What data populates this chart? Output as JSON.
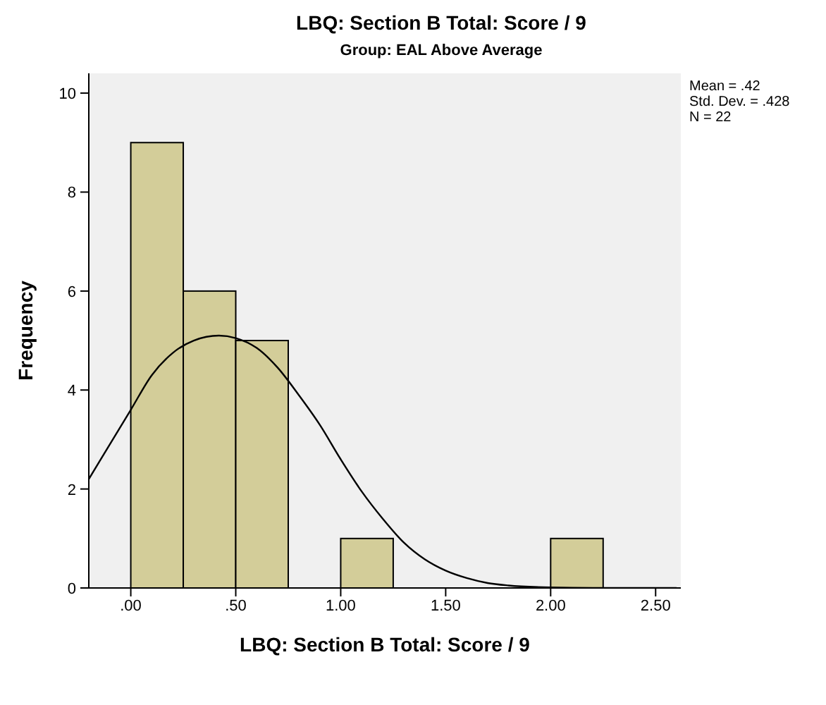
{
  "chart_data": {
    "type": "histogram",
    "title": "LBQ: Section B Total: Score / 9",
    "subtitle": "Group: EAL Above Average",
    "xlabel": "LBQ: Section B Total: Score / 9",
    "ylabel": "Frequency",
    "bins": [
      0,
      0.25,
      0.5,
      0.75,
      1,
      1.25,
      1.5,
      1.75,
      2,
      2.25
    ],
    "values": [
      9,
      6,
      5,
      0,
      1,
      0,
      0,
      0,
      1
    ],
    "color": "#d3cd99",
    "series": [
      {
        "type": "line",
        "color": "#000000",
        "x": [
          -0.2,
          -0.1,
          0,
          0.1,
          0.2,
          0.3,
          0.42,
          0.5,
          0.6,
          0.7,
          0.8,
          0.9,
          1,
          1.1,
          1.2,
          1.3,
          1.4,
          1.5,
          1.6,
          1.7,
          1.8,
          2,
          2.2,
          2.6
        ],
        "values": [
          2.2,
          2.9,
          3.6,
          4.3,
          4.75,
          5,
          5.1,
          5.05,
          4.85,
          4.45,
          3.9,
          3.3,
          2.6,
          1.95,
          1.4,
          0.92,
          0.58,
          0.35,
          0.2,
          0.1,
          0.05,
          0.01,
          0,
          0
        ]
      }
    ],
    "xlim": [
      -0.2,
      2.62
    ],
    "ylim": [
      0,
      10.4
    ],
    "xticks": [
      {
        "value": 0,
        "label": ".00"
      },
      {
        "value": 0.5,
        "label": ".50"
      },
      {
        "value": 1,
        "label": "1.00"
      },
      {
        "value": 1.5,
        "label": "1.50"
      },
      {
        "value": 2,
        "label": "2.00"
      },
      {
        "value": 2.5,
        "label": "2.50"
      }
    ],
    "yticks": [
      0,
      2,
      4,
      6,
      8,
      10
    ],
    "grid": false,
    "marker": "none",
    "annotations": [
      "Mean = .42",
      "Std. Dev. = .428",
      "N = 22"
    ]
  }
}
